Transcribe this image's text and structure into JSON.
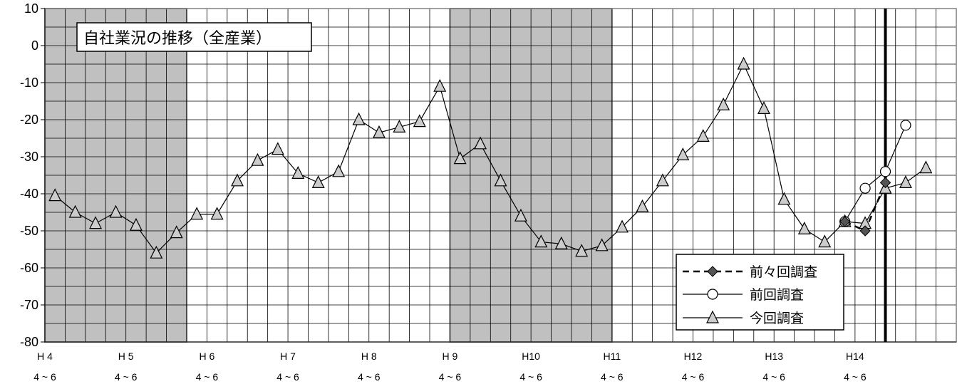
{
  "chart_data": {
    "type": "line",
    "title": "自社業況の推移（全産業）",
    "ylim": [
      -80,
      10
    ],
    "yticks": [
      10,
      0,
      -10,
      -20,
      -30,
      -40,
      -50,
      -60,
      -70,
      -80
    ],
    "grid": true,
    "legend_position": "bottom-right",
    "x_quarters": 45,
    "x_labels": [
      {
        "index": 0,
        "year": "H 4",
        "period": "4 ~ 6"
      },
      {
        "index": 4,
        "year": "H 5",
        "period": "4 ~ 6"
      },
      {
        "index": 8,
        "year": "H 6",
        "period": "4 ~ 6"
      },
      {
        "index": 12,
        "year": "H 7",
        "period": "4 ~ 6"
      },
      {
        "index": 16,
        "year": "H 8",
        "period": "4 ~ 6"
      },
      {
        "index": 20,
        "year": "H 9",
        "period": "4 ~ 6"
      },
      {
        "index": 24,
        "year": "H10",
        "period": "4 ~ 6"
      },
      {
        "index": 28,
        "year": "H11",
        "period": "4 ~ 6"
      },
      {
        "index": 32,
        "year": "H12",
        "period": "4 ~ 6"
      },
      {
        "index": 36,
        "year": "H13",
        "period": "4 ~ 6"
      },
      {
        "index": 40,
        "year": "H14",
        "period": "4 ~ 6"
      }
    ],
    "recession_shading": [
      [
        0,
        7
      ],
      [
        20,
        28
      ]
    ],
    "forecast_line_index": 41.5,
    "series": [
      {
        "name": "前々回調査",
        "style": "dashed-diamond",
        "points": [
          [
            39,
            -47.5
          ],
          [
            40,
            -50
          ],
          [
            41,
            -37
          ]
        ]
      },
      {
        "name": "前回調査",
        "style": "solid-circle",
        "points": [
          [
            39,
            -47.5
          ],
          [
            40,
            -38.5
          ],
          [
            41,
            -34
          ],
          [
            42,
            -21.5
          ]
        ]
      },
      {
        "name": "今回調査",
        "style": "solid-triangle",
        "points": [
          [
            0,
            -40.5
          ],
          [
            1,
            -45
          ],
          [
            2,
            -48
          ],
          [
            3,
            -45
          ],
          [
            4,
            -48.5
          ],
          [
            5,
            -56
          ],
          [
            6,
            -50.5
          ],
          [
            7,
            -45.5
          ],
          [
            8,
            -45.5
          ],
          [
            9,
            -36.5
          ],
          [
            10,
            -31
          ],
          [
            11,
            -28
          ],
          [
            12,
            -34.5
          ],
          [
            13,
            -37
          ],
          [
            14,
            -34
          ],
          [
            15,
            -20
          ],
          [
            16,
            -23.5
          ],
          [
            17,
            -22
          ],
          [
            18,
            -20.5
          ],
          [
            19,
            -11
          ],
          [
            20,
            -30.5
          ],
          [
            21,
            -26.5
          ],
          [
            22,
            -36.5
          ],
          [
            23,
            -46
          ],
          [
            24,
            -53
          ],
          [
            25,
            -53.5
          ],
          [
            26,
            -55.5
          ],
          [
            27,
            -54
          ],
          [
            28,
            -49
          ],
          [
            29,
            -43.5
          ],
          [
            30,
            -36.5
          ],
          [
            31,
            -29.5
          ],
          [
            32,
            -24.5
          ],
          [
            33,
            -16
          ],
          [
            34,
            -5
          ],
          [
            35,
            -17
          ],
          [
            36,
            -41.5
          ],
          [
            37,
            -49.5
          ],
          [
            38,
            -53
          ],
          [
            39,
            -47.5
          ],
          [
            40,
            -48
          ],
          [
            41,
            -38.5
          ],
          [
            42,
            -37
          ],
          [
            43,
            -33
          ]
        ]
      }
    ]
  }
}
